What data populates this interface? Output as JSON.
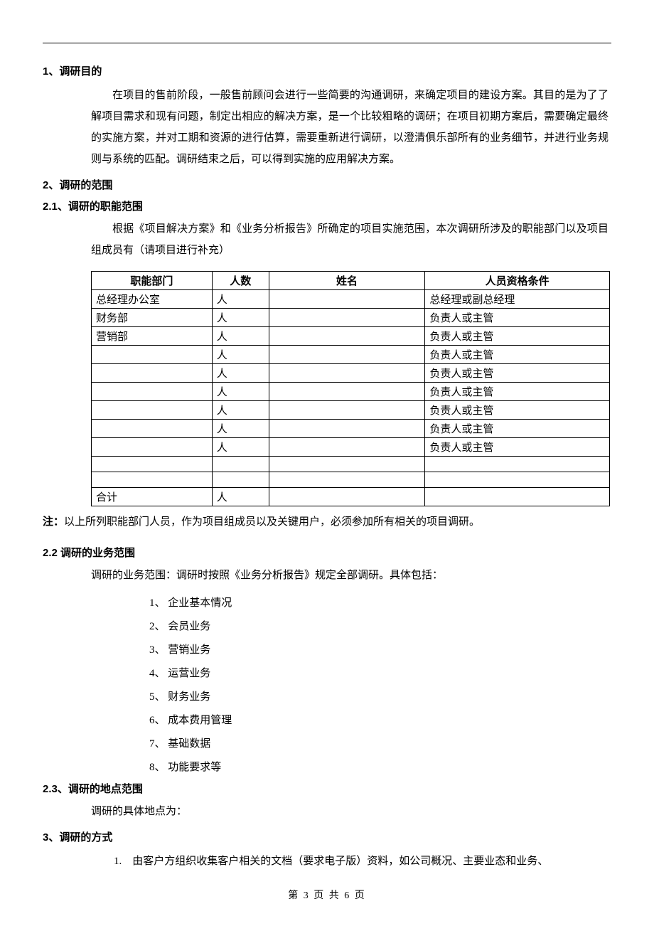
{
  "headings": {
    "h1": "1、调研目的",
    "h2": "2、调研的范围",
    "h2_1": "2.1、调研的职能范围",
    "h2_2": "2.2 调研的业务范围",
    "h2_3": "2.3、调研的地点范围",
    "h3": "3、调研的方式"
  },
  "paragraphs": {
    "p1": "在项目的售前阶段，一般售前顾问会进行一些简要的沟通调研，来确定项目的建设方案。其目的是为了了解项目需求和现有问题，制定出相应的解决方案，是一个比较粗略的调研；在项目初期方案后，需要确定最终的实施方案，并对工期和资源的进行估算，需要重新进行调研，以澄清俱乐部所有的业务细节，并进行业务规则与系统的匹配。调研结束之后，可以得到实施的应用解决方案。",
    "p2_1": "根据《项目解决方案》和《业务分析报告》所确定的项目实施范围，本次调研所涉及的职能部门以及项目组成员有（请项目进行补充）",
    "note_label": "注：",
    "note_body": "以上所列职能部门人员，作为项目组成员以及关键用户，必须参加所有相关的项目调研。",
    "p2_2_intro": "调研的业务范围：调研时按照《业务分析报告》规定全部调研。具体包括：",
    "p2_3_intro": "调研的具体地点为：",
    "method_1_prefix": "1.　",
    "method_1": "由客户方组织收集客户相关的文档（要求电子版）资料，如公司概况、主要业态和业务、"
  },
  "table": {
    "headers": {
      "dept": "职能部门",
      "count": "人数",
      "name": "姓名",
      "qual": "人员资格条件"
    },
    "rows": [
      {
        "dept": "总经理办公室",
        "count": "人",
        "name": "",
        "qual": "总经理或副总经理"
      },
      {
        "dept": "财务部",
        "count": "人",
        "name": "",
        "qual": "负责人或主管"
      },
      {
        "dept": "营销部",
        "count": "人",
        "name": "",
        "qual": "负责人或主管"
      },
      {
        "dept": "",
        "count": "人",
        "name": "",
        "qual": "负责人或主管"
      },
      {
        "dept": "",
        "count": "人",
        "name": "",
        "qual": "负责人或主管"
      },
      {
        "dept": "",
        "count": "人",
        "name": "",
        "qual": "负责人或主管"
      },
      {
        "dept": "",
        "count": "人",
        "name": "",
        "qual": "负责人或主管"
      },
      {
        "dept": "",
        "count": "人",
        "name": "",
        "qual": "负责人或主管"
      },
      {
        "dept": "",
        "count": "人",
        "name": "",
        "qual": "负责人或主管"
      },
      {
        "dept": "",
        "count": "",
        "name": "",
        "qual": ""
      },
      {
        "dept": "",
        "count": "",
        "name": "",
        "qual": ""
      },
      {
        "dept": "合计",
        "count": "人",
        "name": "",
        "qual": ""
      }
    ]
  },
  "biz_list": [
    "企业基本情况",
    "会员业务",
    "营销业务",
    "运营业务",
    "财务业务",
    "成本费用管理",
    "基础数据",
    "功能要求等"
  ],
  "footer": "第 3 页 共 6 页"
}
